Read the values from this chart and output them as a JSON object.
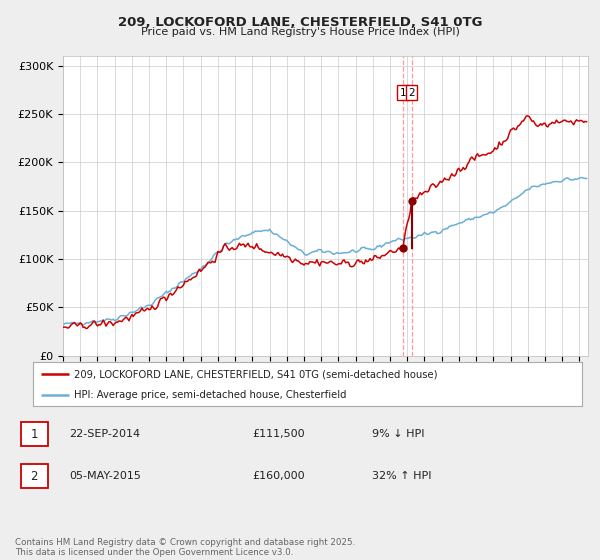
{
  "title_line1": "209, LOCKOFORD LANE, CHESTERFIELD, S41 0TG",
  "title_line2": "Price paid vs. HM Land Registry's House Price Index (HPI)",
  "ylabel_ticks": [
    "£0",
    "£50K",
    "£100K",
    "£150K",
    "£200K",
    "£250K",
    "£300K"
  ],
  "ytick_vals": [
    0,
    50000,
    100000,
    150000,
    200000,
    250000,
    300000
  ],
  "ylim": [
    0,
    310000
  ],
  "xlim_start": 1995.0,
  "xlim_end": 2025.5,
  "hpi_color": "#6baed6",
  "price_color": "#cc0000",
  "marker_color": "#8b0000",
  "vline_color": "#ff9999",
  "transaction1_date": 2014.73,
  "transaction1_price": 111500,
  "transaction2_date": 2015.34,
  "transaction2_price": 160000,
  "legend_label1": "209, LOCKOFORD LANE, CHESTERFIELD, S41 0TG (semi-detached house)",
  "legend_label2": "HPI: Average price, semi-detached house, Chesterfield",
  "anno1_label": "1",
  "anno2_label": "2",
  "table_row1": [
    "1",
    "22-SEP-2014",
    "£111,500",
    "9% ↓ HPI"
  ],
  "table_row2": [
    "2",
    "05-MAY-2015",
    "£160,000",
    "32% ↑ HPI"
  ],
  "footnote": "Contains HM Land Registry data © Crown copyright and database right 2025.\nThis data is licensed under the Open Government Licence v3.0.",
  "bg_color": "#eeeeee",
  "plot_bg_color": "#ffffff",
  "grid_color": "#cccccc"
}
